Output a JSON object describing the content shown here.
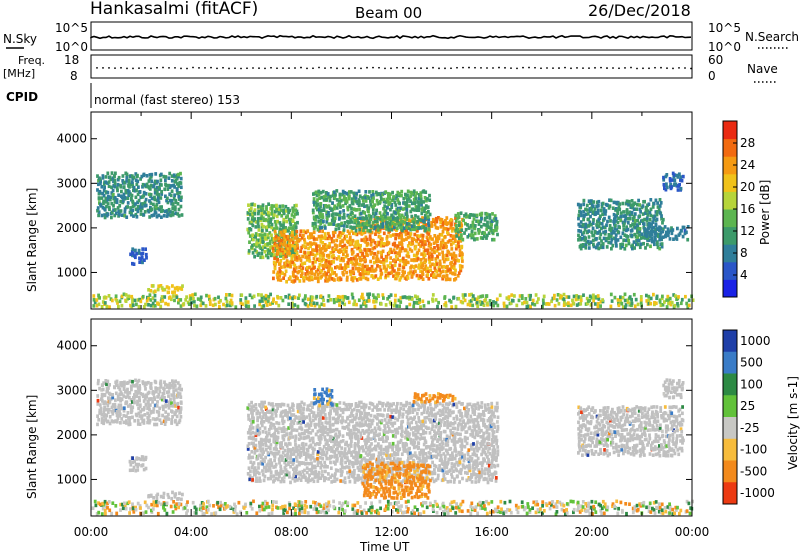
{
  "header": {
    "station": "Hankasalmi (fitACF)",
    "beam": "Beam 00",
    "date": "26/Dec/2018"
  },
  "panels": {
    "nsky": {
      "label": "N.Sky",
      "tick_top": "10^5",
      "tick_bottom": "10^0"
    },
    "nsearch": {
      "label": "N.Search",
      "tick_top": "10^5",
      "tick_bottom": "10^0"
    },
    "freq": {
      "label_line1": "Freq.",
      "label_line2": "[MHz]",
      "tick_top": "18",
      "tick_bottom": "8"
    },
    "nave": {
      "label": "Nave",
      "tick_top": "60",
      "tick_bottom": "0"
    },
    "cpid": {
      "label": "CPID",
      "text": "normal (fast stereo) 153"
    }
  },
  "chart_data": [
    {
      "type": "heatmap",
      "title": "",
      "xlabel": "Time UT",
      "ylabel": "Slant Range [km]",
      "x_ticks": [
        "00:00",
        "04:00",
        "08:00",
        "12:00",
        "16:00",
        "20:00",
        "00:00"
      ],
      "xlim_hours": [
        0,
        24
      ],
      "y_ticks": [
        "1000",
        "2000",
        "3000",
        "4000"
      ],
      "ylim": [
        180,
        4600
      ],
      "colorbar": {
        "label": "Power [dB]",
        "ticks": [
          "4",
          "8",
          "12",
          "16",
          "20",
          "24",
          "28"
        ],
        "range": [
          0,
          32
        ],
        "colors": [
          "#1a22e6",
          "#2a56c8",
          "#2f7e9a",
          "#3c9a6a",
          "#5cb550",
          "#b6d43a",
          "#f0c21a",
          "#f59a12",
          "#f26a10",
          "#ea2a12"
        ]
      },
      "regions": [
        {
          "t0": 0.2,
          "t1": 3.6,
          "r0": 2200,
          "r1": 3200,
          "value": 10,
          "spread": 6
        },
        {
          "t0": 1.5,
          "t1": 2.2,
          "r0": 1150,
          "r1": 1500,
          "value": 6,
          "spread": 3
        },
        {
          "t0": 2.2,
          "t1": 3.6,
          "r0": 520,
          "r1": 680,
          "value": 20,
          "spread": 4
        },
        {
          "t0": 6.2,
          "t1": 8.2,
          "r0": 1300,
          "r1": 2500,
          "value": 14,
          "spread": 8
        },
        {
          "t0": 7.2,
          "t1": 10.5,
          "r0": 750,
          "r1": 1900,
          "value": 24,
          "spread": 6
        },
        {
          "t0": 10.5,
          "t1": 14.8,
          "r0": 800,
          "r1": 2200,
          "value": 24,
          "spread": 6
        },
        {
          "t0": 8.8,
          "t1": 13.5,
          "r0": 1900,
          "r1": 2800,
          "value": 12,
          "spread": 7
        },
        {
          "t0": 14.5,
          "t1": 16.2,
          "r0": 1700,
          "r1": 2300,
          "value": 12,
          "spread": 6
        },
        {
          "t0": 19.4,
          "t1": 22.8,
          "r0": 1500,
          "r1": 2600,
          "value": 10,
          "spread": 6
        },
        {
          "t0": 22.0,
          "t1": 23.8,
          "r0": 1700,
          "r1": 2000,
          "value": 8,
          "spread": 4
        },
        {
          "t0": 22.8,
          "t1": 23.6,
          "r0": 2800,
          "r1": 3200,
          "value": 6,
          "spread": 4
        },
        {
          "t0": 0.0,
          "t1": 24.0,
          "r0": 190,
          "r1": 480,
          "value": 16,
          "spread": 12
        }
      ]
    },
    {
      "type": "heatmap",
      "title": "",
      "xlabel": "Time UT",
      "ylabel": "Slant Range [km]",
      "x_ticks": [
        "00:00",
        "04:00",
        "08:00",
        "12:00",
        "16:00",
        "20:00",
        "00:00"
      ],
      "xlim_hours": [
        0,
        24
      ],
      "y_ticks": [
        "1000",
        "2000",
        "3000",
        "4000"
      ],
      "ylim": [
        180,
        4600
      ],
      "colorbar": {
        "label": "Velocity [m s-1]",
        "ticks": [
          "1000",
          "500",
          "100",
          "25",
          "-25",
          "-100",
          "-500",
          "-1000"
        ],
        "ground_scatter_color": "#c0c0c0",
        "colors": [
          "#1f3fa8",
          "#3a7cc7",
          "#2d8a44",
          "#62c23a",
          "#c8c8c4",
          "#f7bc3c",
          "#f38a1c",
          "#ec3a12"
        ]
      },
      "regions": [
        {
          "t0": 0.2,
          "t1": 3.6,
          "r0": 2200,
          "r1": 3200,
          "value": "ground"
        },
        {
          "t0": 1.5,
          "t1": 2.2,
          "r0": 1150,
          "r1": 1500,
          "value": "ground"
        },
        {
          "t0": 2.2,
          "t1": 3.6,
          "r0": 520,
          "r1": 680,
          "value": "ground"
        },
        {
          "t0": 6.2,
          "t1": 16.2,
          "r0": 900,
          "r1": 2700,
          "value": "ground"
        },
        {
          "t0": 10.8,
          "t1": 13.5,
          "r0": 550,
          "r1": 1350,
          "value": -200
        },
        {
          "t0": 8.8,
          "t1": 9.6,
          "r0": 2600,
          "r1": 3000,
          "value": 200
        },
        {
          "t0": 12.8,
          "t1": 14.5,
          "r0": 2700,
          "r1": 2900,
          "value": -300
        },
        {
          "t0": 19.4,
          "t1": 23.6,
          "r0": 1500,
          "r1": 2600,
          "value": "ground"
        },
        {
          "t0": 22.8,
          "t1": 23.6,
          "r0": 2800,
          "r1": 3200,
          "value": "ground"
        },
        {
          "t0": 0.0,
          "t1": 24.0,
          "r0": 190,
          "r1": 480,
          "value": "mixed"
        }
      ]
    }
  ]
}
